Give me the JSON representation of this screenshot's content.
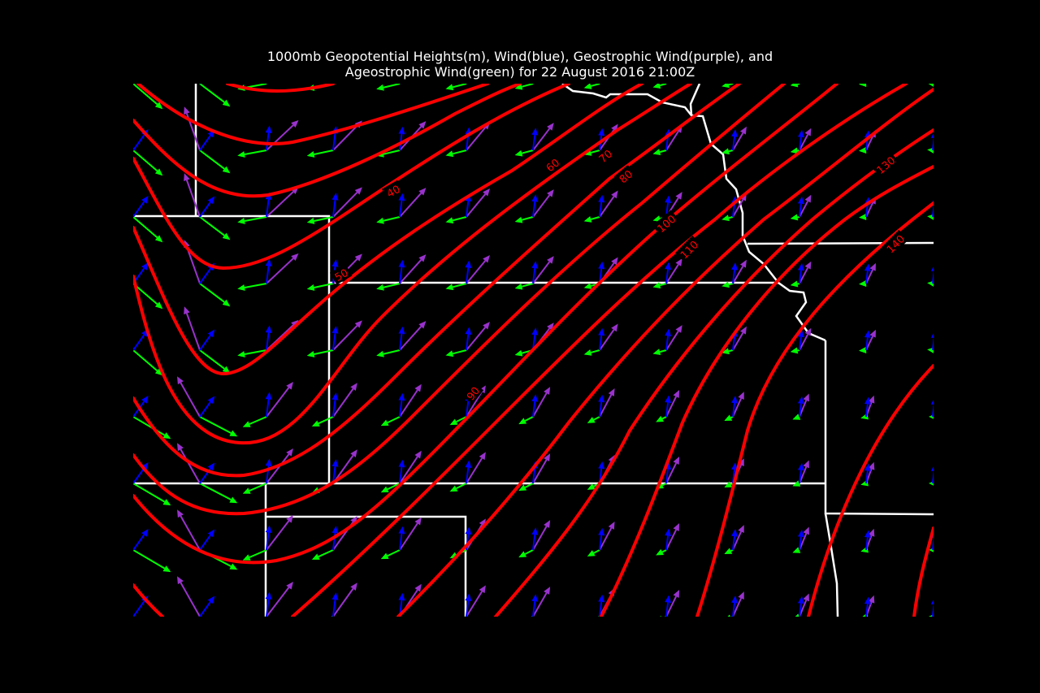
{
  "title": {
    "line1": "1000mb Geopotential Heights(m), Wind(blue), Geostrophic Wind(purple), and",
    "line2": "Ageostrophic Wind(green) for 22 August 2016 21:00Z"
  },
  "colors": {
    "background": "#000000",
    "contour": "#ff0000",
    "boundary": "#ffffff",
    "wind": "#0000ff",
    "geostrophic": "#9932cc",
    "ageostrophic": "#00ff00",
    "label": "#ff0000"
  },
  "contour_labels": [
    "40",
    "50",
    "60",
    "70",
    "80",
    "90",
    "100",
    "110",
    "130",
    "140"
  ]
}
